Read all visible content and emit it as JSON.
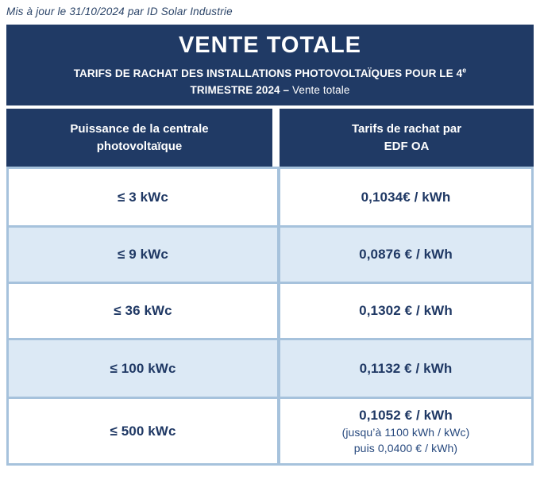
{
  "note": {
    "text": "Mis à jour le 31/10/2024 par ID Solar Industrie"
  },
  "banner": {
    "title": "VENTE TOTALE",
    "subtitle_line1": "TARIFS DE RACHAT DES INSTALLATIONS PHOTOVOLTAÏQUES POUR LE 4",
    "subtitle_superscript": "e",
    "subtitle_line2_bold": "TRIMESTRE 2024 – ",
    "subtitle_line2_regular": "Vente totale"
  },
  "table": {
    "columns": [
      {
        "line1": "Puissance de la centrale",
        "line2": "photovoltaïque"
      },
      {
        "line1": "Tarifs de rachat par",
        "line2": "EDF OA"
      }
    ],
    "rows": [
      {
        "power": "≤ 3 kWc",
        "tariff": "0,1034€ / kWh"
      },
      {
        "power": "≤ 9 kWc",
        "tariff": "0,0876 € / kWh"
      },
      {
        "power": "≤ 36 kWc",
        "tariff": "0,1302 € / kWh"
      },
      {
        "power": "≤ 100 kWc",
        "tariff": "0,1132 € / kWh"
      },
      {
        "power": "≤ 500 kWc",
        "tariff": "0,1052 € / kWh",
        "tariff_note1": "(jusqu’à 1100 kWh / kWc)",
        "tariff_note2": "puis 0,0400 € / kWh)"
      }
    ]
  },
  "colors": {
    "navy": "#203A65",
    "row_alt": "#DCE9F5",
    "border": "#A6C2DC",
    "text_navy": "#1F3864",
    "white": "#FFFFFF"
  }
}
